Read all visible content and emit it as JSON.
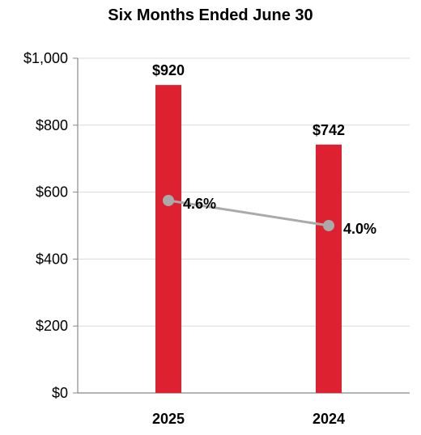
{
  "chart_data": {
    "type": "bar",
    "title": "Six Months Ended June 30",
    "xlabel": "",
    "ylabel": "",
    "categories": [
      "2025",
      "2024"
    ],
    "ylim": [
      0,
      1000
    ],
    "y_ticks": [
      "$0",
      "$200",
      "$400",
      "$600",
      "$800",
      "$1,000"
    ],
    "grid": true,
    "series": [
      {
        "type": "bar",
        "values": [
          920,
          742
        ],
        "labels": [
          "$920",
          "$742"
        ],
        "color": "#de2131"
      },
      {
        "type": "line",
        "values": [
          4.6,
          4.0
        ],
        "labels": [
          "4.6%",
          "4.0%"
        ],
        "color": "#aaaaaa"
      }
    ]
  }
}
